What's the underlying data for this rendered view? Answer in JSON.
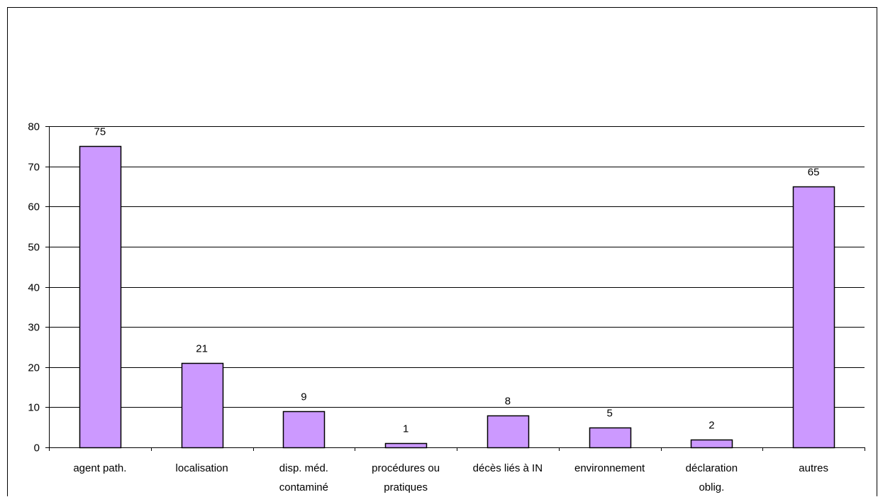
{
  "chart_data": {
    "type": "bar",
    "categories": [
      [
        "agent path."
      ],
      [
        "localisation"
      ],
      [
        "disp. méd.",
        "contaminé"
      ],
      [
        "procédures ou",
        "pratiques"
      ],
      [
        "décès liés à IN"
      ],
      [
        "environnement"
      ],
      [
        "déclaration",
        "oblig."
      ],
      [
        "autres"
      ]
    ],
    "values": [
      75,
      21,
      9,
      1,
      8,
      5,
      2,
      65
    ],
    "data_labels": [
      "75",
      "21",
      "9",
      "1",
      "8",
      "5",
      "2",
      "65"
    ],
    "yticks": [
      "0",
      "10",
      "20",
      "30",
      "40",
      "50",
      "60",
      "70",
      "80"
    ],
    "ylim": [
      0,
      80
    ],
    "grid": true,
    "title": "",
    "xlabel": "",
    "ylabel": "",
    "colors": {
      "bar_fill": "#cc99ff",
      "bar_stroke": "#000000",
      "grid": "#000000",
      "axis": "#000000"
    }
  }
}
